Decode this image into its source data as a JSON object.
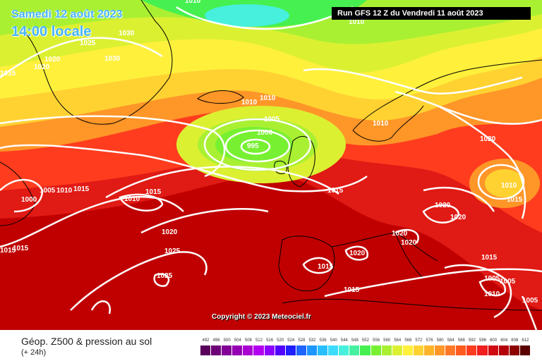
{
  "header": {
    "date": "Samedi 12 août 2023",
    "time": "14:00 locale",
    "run": "Run GFS 12 Z du Vendredi 11 août 2023"
  },
  "copyright": "Copyright © 2023 Meteociel.fr",
  "legend": {
    "title": "Géop. Z500 & pression au sol",
    "subtitle": "(+ 24h)",
    "scale": [
      {
        "value": "492",
        "color": "#5a005a"
      },
      {
        "value": "496",
        "color": "#6e0078"
      },
      {
        "value": "500",
        "color": "#820096"
      },
      {
        "value": "504",
        "color": "#9600b4"
      },
      {
        "value": "508",
        "color": "#aa00d2"
      },
      {
        "value": "512",
        "color": "#b400f0"
      },
      {
        "value": "516",
        "color": "#8c00ff"
      },
      {
        "value": "520",
        "color": "#5000ff"
      },
      {
        "value": "524",
        "color": "#1e1eff"
      },
      {
        "value": "528",
        "color": "#1e64ff"
      },
      {
        "value": "532",
        "color": "#1e96ff"
      },
      {
        "value": "536",
        "color": "#28beff"
      },
      {
        "value": "540",
        "color": "#3cdcff"
      },
      {
        "value": "544",
        "color": "#46f0dc"
      },
      {
        "value": "548",
        "color": "#46f0a0"
      },
      {
        "value": "552",
        "color": "#46f050"
      },
      {
        "value": "556",
        "color": "#78f032"
      },
      {
        "value": "560",
        "color": "#aaf032"
      },
      {
        "value": "564",
        "color": "#dcf032"
      },
      {
        "value": "568",
        "color": "#fff03c"
      },
      {
        "value": "572",
        "color": "#ffd232"
      },
      {
        "value": "576",
        "color": "#ffb428"
      },
      {
        "value": "580",
        "color": "#ff9628"
      },
      {
        "value": "584",
        "color": "#ff7828"
      },
      {
        "value": "588",
        "color": "#ff5a1e"
      },
      {
        "value": "592",
        "color": "#ff3c1e"
      },
      {
        "value": "596",
        "color": "#f01e1e"
      },
      {
        "value": "600",
        "color": "#d20a14"
      },
      {
        "value": "604",
        "color": "#b4000a"
      },
      {
        "value": "608",
        "color": "#8c0000"
      },
      {
        "value": "612",
        "color": "#5a0000"
      }
    ]
  },
  "isobars": [
    {
      "label": "1010",
      "id": "n1010"
    },
    {
      "label": "1010",
      "id": "n1010b"
    },
    {
      "label": "1025",
      "id": "g1025"
    },
    {
      "label": "1030",
      "id": "g1030"
    },
    {
      "label": "1030",
      "id": "g1030b"
    },
    {
      "label": "1020",
      "id": "g1020"
    },
    {
      "label": "1020",
      "id": "g1020b"
    },
    {
      "label": "1015",
      "id": "w1015"
    },
    {
      "label": "1010",
      "id": "i1010a"
    },
    {
      "label": "1010",
      "id": "i1010b"
    },
    {
      "label": "1005",
      "id": "i1005"
    },
    {
      "label": "1000",
      "id": "i1000"
    },
    {
      "label": "995",
      "id": "i995"
    },
    {
      "label": "1010",
      "id": "s1010"
    },
    {
      "label": "1020",
      "id": "r1020"
    },
    {
      "label": "1005",
      "id": "c1005"
    },
    {
      "label": "1010",
      "id": "c1010"
    },
    {
      "label": "1015",
      "id": "c1015"
    },
    {
      "label": "1000",
      "id": "c1000"
    },
    {
      "label": "1010",
      "id": "a1010"
    },
    {
      "label": "1015",
      "id": "a1015"
    },
    {
      "label": "1015",
      "id": "uk1015"
    },
    {
      "label": "1020",
      "id": "a1020"
    },
    {
      "label": "1025",
      "id": "a1025"
    },
    {
      "label": "1025",
      "id": "a1025b"
    },
    {
      "label": "1015",
      "id": "w1015b"
    },
    {
      "label": "1015",
      "id": "w1015c"
    },
    {
      "label": "1020",
      "id": "e1020a"
    },
    {
      "label": "1020",
      "id": "e1020b"
    },
    {
      "label": "1020",
      "id": "e1020c"
    },
    {
      "label": "1020",
      "id": "e1020d"
    },
    {
      "label": "1020",
      "id": "sp1020"
    },
    {
      "label": "1015",
      "id": "sp1015"
    },
    {
      "label": "1015",
      "id": "m1015"
    },
    {
      "label": "1010",
      "id": "bk1010"
    },
    {
      "label": "1015",
      "id": "bk1015"
    },
    {
      "label": "1015",
      "id": "gr1015"
    },
    {
      "label": "1005",
      "id": "gr1005"
    },
    {
      "label": "1005",
      "id": "gr1005b"
    },
    {
      "label": "1010",
      "id": "gr1010"
    },
    {
      "label": "1005",
      "id": "tr1005"
    }
  ]
}
